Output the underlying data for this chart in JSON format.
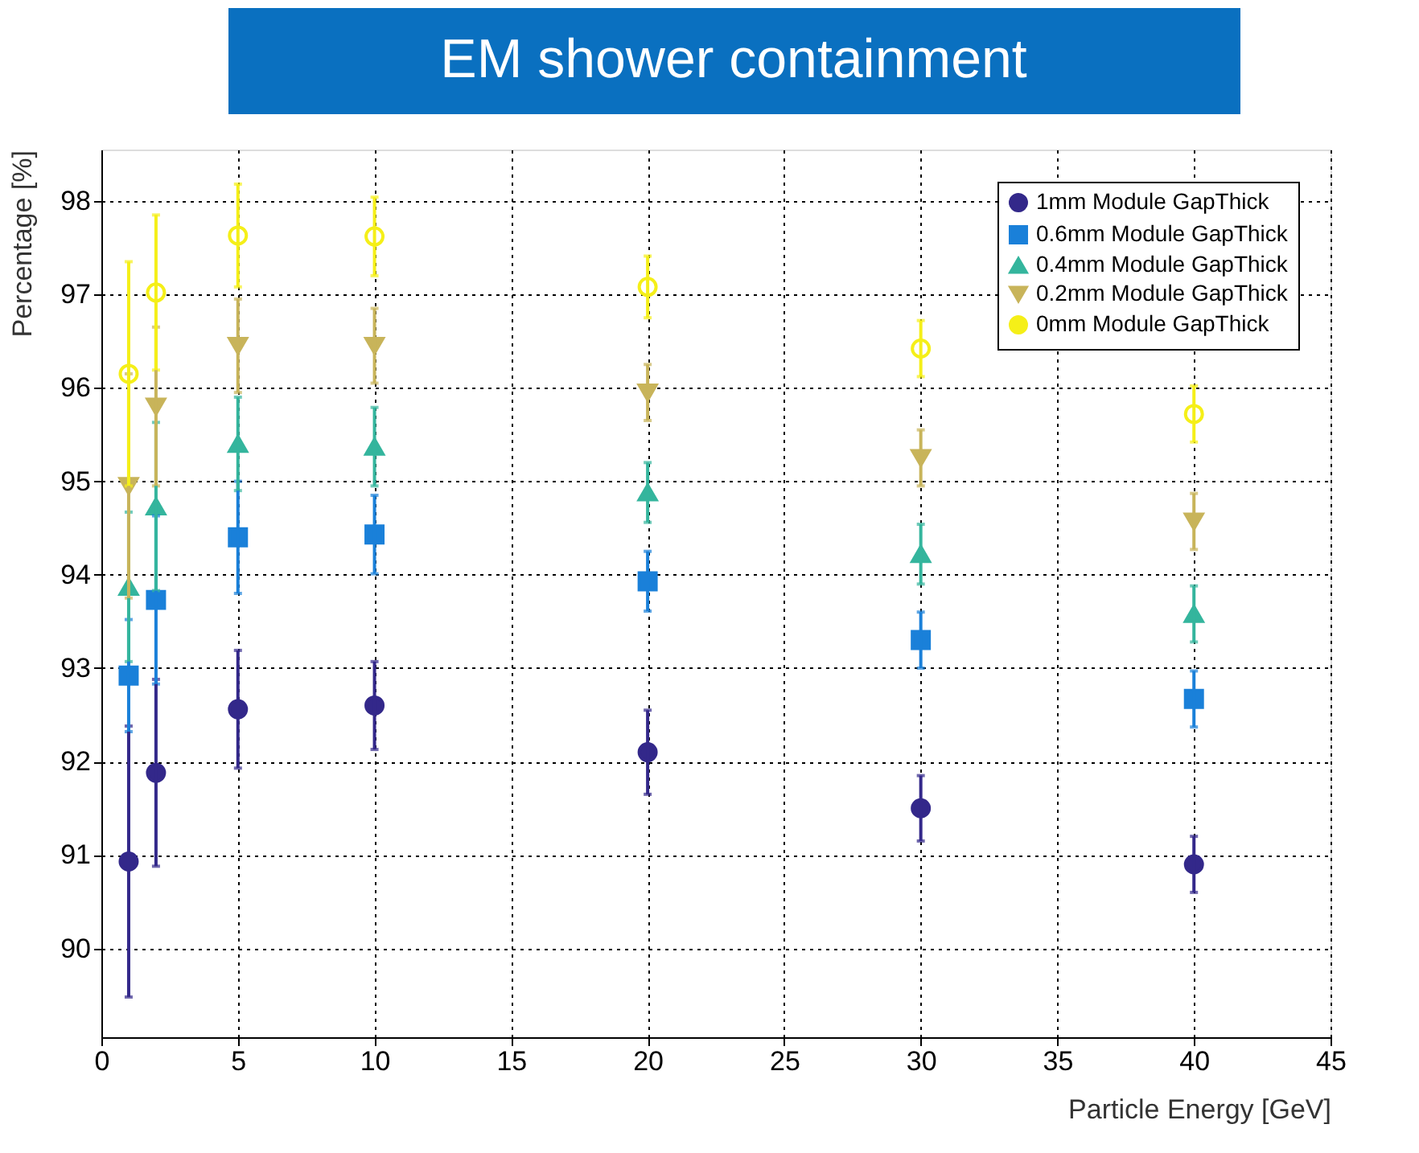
{
  "chart_data": {
    "type": "scatter",
    "title": "EM shower containment",
    "xlabel": "Particle Energy [GeV]",
    "ylabel": "Percentage [%]",
    "x": [
      1,
      2,
      5,
      10,
      20,
      30,
      40
    ],
    "series": [
      {
        "name": "1mm Module GapThick",
        "color": "#33288a",
        "marker": "circle",
        "values": [
          90.93,
          91.88,
          92.56,
          92.6,
          92.1,
          91.5,
          90.9
        ],
        "errors": [
          1.45,
          1.0,
          0.63,
          0.47,
          0.45,
          0.35,
          0.3
        ]
      },
      {
        "name": "0.6mm Module GapThick",
        "color": "#1a80d9",
        "marker": "square",
        "values": [
          92.92,
          93.73,
          94.4,
          94.43,
          93.93,
          93.3,
          92.67
        ],
        "errors": [
          0.6,
          0.9,
          0.6,
          0.42,
          0.32,
          0.3,
          0.3
        ]
      },
      {
        "name": "0.4mm Module GapThick",
        "color": "#34b59d",
        "marker": "triangle",
        "values": [
          93.87,
          94.73,
          95.4,
          95.37,
          94.88,
          94.22,
          93.58
        ],
        "errors": [
          0.8,
          0.9,
          0.5,
          0.42,
          0.32,
          0.32,
          0.3
        ]
      },
      {
        "name": "0.2mm Module GapThick",
        "color": "#c8b45a",
        "marker": "triangle-down",
        "values": [
          94.95,
          95.8,
          96.45,
          96.45,
          95.95,
          95.25,
          94.57
        ],
        "errors": [
          1.2,
          0.85,
          0.5,
          0.4,
          0.3,
          0.3,
          0.3
        ]
      },
      {
        "name": "0mm Module GapThick",
        "color": "#f5ef18",
        "marker": "open-circle",
        "values": [
          96.15,
          97.02,
          97.63,
          97.62,
          97.08,
          96.42,
          95.72
        ],
        "errors": [
          1.2,
          0.83,
          0.55,
          0.42,
          0.33,
          0.3,
          0.3
        ]
      }
    ],
    "xlim": [
      0,
      45
    ],
    "xticks": [
      0,
      5,
      10,
      15,
      20,
      25,
      30,
      35,
      40,
      45
    ],
    "ylim": [
      89.05,
      98.55
    ],
    "yticks": [
      90,
      91,
      92,
      93,
      94,
      95,
      96,
      97,
      98
    ],
    "grid": true,
    "legend": "top right"
  }
}
